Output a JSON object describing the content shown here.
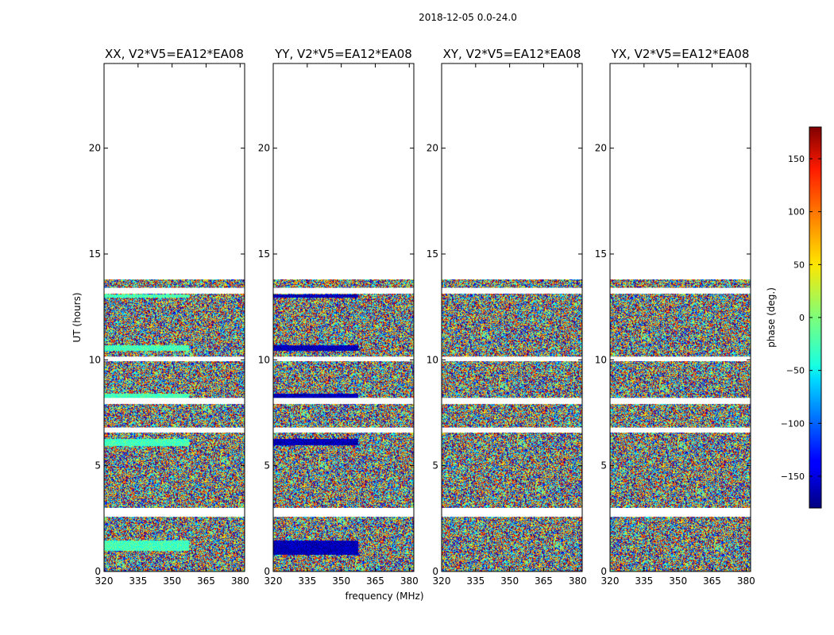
{
  "chart_data": {
    "type": "heatmap",
    "title": "2018-12-05 0.0-24.0",
    "xlabel": "frequency (MHz)",
    "ylabel": "UT (hours)",
    "xlim": [
      320,
      382
    ],
    "ylim": [
      0,
      24
    ],
    "xticks": [
      320,
      335,
      350,
      365,
      380
    ],
    "yticks": [
      0,
      5,
      10,
      15,
      20
    ],
    "data_ut_range": [
      0,
      13.8
    ],
    "flagged_ut_bands": [
      [
        2.6,
        3.0
      ],
      [
        6.6,
        6.8
      ],
      [
        7.95,
        8.2
      ],
      [
        9.95,
        10.15
      ],
      [
        13.15,
        13.4
      ]
    ],
    "panels": [
      {
        "title": "XX, V2*V5=EA12*EA08",
        "coherent_phase_deg": -20,
        "coherent_bands": [
          [
            1.0,
            1.5
          ],
          [
            5.95,
            6.3
          ],
          [
            8.2,
            8.4
          ],
          [
            10.45,
            10.7
          ],
          [
            12.95,
            13.1
          ]
        ]
      },
      {
        "title": "YY, V2*V5=EA12*EA08",
        "coherent_phase_deg": -160,
        "coherent_bands": [
          [
            0.8,
            1.5
          ],
          [
            6.0,
            6.3
          ],
          [
            8.2,
            8.4
          ],
          [
            10.45,
            10.7
          ],
          [
            12.95,
            13.1
          ]
        ]
      },
      {
        "title": "XY, V2*V5=EA12*EA08",
        "coherent_phase_deg": null,
        "coherent_bands": []
      },
      {
        "title": "YX, V2*V5=EA12*EA08",
        "coherent_phase_deg": null,
        "coherent_bands": []
      }
    ],
    "colorbar": {
      "label": "phase (deg.)",
      "range": [
        -180,
        180
      ],
      "ticks": [
        150,
        100,
        50,
        0,
        -50,
        -100,
        -150
      ],
      "tick_labels": [
        "150",
        "100",
        "50",
        "0",
        "−50",
        "−100",
        "−150"
      ],
      "colormap": "jet"
    }
  }
}
